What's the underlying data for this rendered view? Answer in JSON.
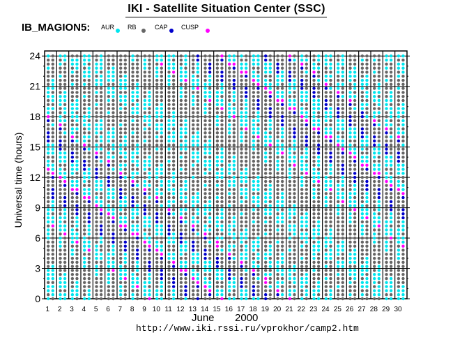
{
  "title": "IKI - Satellite Situation Center (SSC)",
  "satellite": "IB_MAGION5:",
  "legend": [
    {
      "label": "AUR",
      "color": "#00e5ee"
    },
    {
      "label": "RB",
      "color": "#666666"
    },
    {
      "label": "CAP",
      "color": "#0000cc"
    },
    {
      "label": "CUSP",
      "color": "#ff00ff"
    }
  ],
  "url": "http://www.iki.rssi.ru/vprokhor/camp2.htm",
  "chart_data": {
    "type": "scatter",
    "ylabel": "Universal time (hours)",
    "xlabel_month": "June",
    "xlabel_year": "2000",
    "ylim": [
      0,
      24.5
    ],
    "yticks": [
      0,
      3,
      6,
      9,
      12,
      15,
      18,
      21,
      24
    ],
    "days": [
      1,
      2,
      3,
      4,
      5,
      6,
      7,
      8,
      9,
      10,
      11,
      12,
      13,
      14,
      15,
      16,
      17,
      18,
      19,
      20,
      21,
      22,
      23,
      24,
      25,
      26,
      27,
      28,
      29,
      30
    ],
    "grid": true,
    "sample_step_hours": 0.4,
    "region_pattern": [
      {
        "region": "AUR",
        "hours": [
          0,
          1.2,
          2.8,
          4.5,
          6.6,
          8.0,
          9.5,
          11.0,
          13.6,
          15.2,
          17.0,
          18.6,
          20.6,
          22.8
        ]
      },
      {
        "region": "RB",
        "hours": [
          0.4,
          1.6,
          3.2,
          3.6,
          5.0,
          7.2,
          8.6,
          12.0,
          12.4,
          14.0,
          19.2,
          19.6,
          21.2,
          21.6,
          23.2
        ]
      },
      {
        "region": "CAP",
        "hours": [
          5.4,
          10.2,
          10.6,
          15.6,
          16.0,
          16.4,
          17.6
        ]
      },
      {
        "region": "CUSP",
        "hours": [
          9.8,
          12.8,
          18.0
        ]
      }
    ]
  }
}
